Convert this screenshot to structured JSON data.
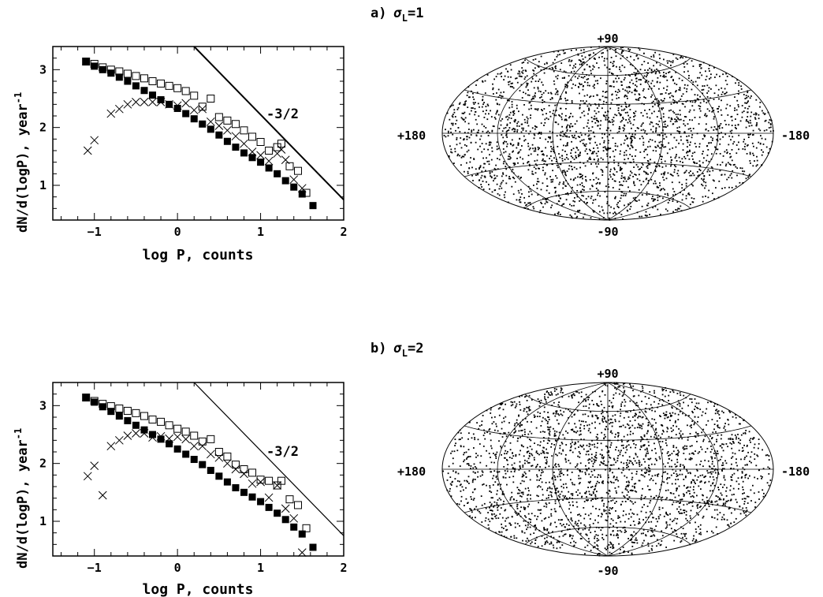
{
  "chart_data": [
    {
      "type": "scatter",
      "panel": "a",
      "xlabel": "log P, counts",
      "ylabel": "dN/d(logP), year",
      "ylabel_sup": "-1",
      "xlim": [
        -1.5,
        2.0
      ],
      "ylim": [
        0.4,
        3.4
      ],
      "xticks": [
        -1,
        0,
        1,
        2
      ],
      "yticks": [
        1,
        2,
        3
      ],
      "annotation": "-3/2",
      "line": {
        "x": [
          0.2,
          2.0
        ],
        "y": [
          3.4,
          0.75
        ]
      },
      "series": [
        {
          "marker": "filled-square",
          "values": [
            [
              -1.1,
              3.14
            ],
            [
              -1.0,
              3.06
            ],
            [
              -0.9,
              3.0
            ],
            [
              -0.8,
              2.94
            ],
            [
              -0.7,
              2.87
            ],
            [
              -0.6,
              2.8
            ],
            [
              -0.5,
              2.72
            ],
            [
              -0.4,
              2.64
            ],
            [
              -0.3,
              2.56
            ],
            [
              -0.2,
              2.48
            ],
            [
              -0.1,
              2.4
            ],
            [
              0.0,
              2.33
            ],
            [
              0.1,
              2.24
            ],
            [
              0.2,
              2.15
            ],
            [
              0.3,
              2.06
            ],
            [
              0.4,
              1.97
            ],
            [
              0.5,
              1.87
            ],
            [
              0.6,
              1.76
            ],
            [
              0.7,
              1.66
            ],
            [
              0.8,
              1.56
            ],
            [
              0.9,
              1.48
            ],
            [
              1.0,
              1.4
            ],
            [
              1.1,
              1.3
            ],
            [
              1.2,
              1.2
            ],
            [
              1.3,
              1.08
            ],
            [
              1.4,
              0.97
            ],
            [
              1.5,
              0.85
            ],
            [
              1.63,
              0.65
            ]
          ]
        },
        {
          "marker": "open-square",
          "values": [
            [
              -1.1,
              3.14
            ],
            [
              -1.0,
              3.1
            ],
            [
              -0.9,
              3.04
            ],
            [
              -0.8,
              3.0
            ],
            [
              -0.7,
              2.97
            ],
            [
              -0.6,
              2.93
            ],
            [
              -0.5,
              2.89
            ],
            [
              -0.4,
              2.85
            ],
            [
              -0.3,
              2.8
            ],
            [
              -0.2,
              2.76
            ],
            [
              -0.1,
              2.72
            ],
            [
              0.0,
              2.68
            ],
            [
              0.1,
              2.63
            ],
            [
              0.2,
              2.55
            ],
            [
              0.3,
              2.36
            ],
            [
              0.4,
              2.5
            ],
            [
              0.5,
              2.18
            ],
            [
              0.6,
              2.12
            ],
            [
              0.7,
              2.06
            ],
            [
              0.8,
              1.95
            ],
            [
              0.9,
              1.84
            ],
            [
              1.0,
              1.75
            ],
            [
              1.1,
              1.6
            ],
            [
              1.2,
              1.66
            ],
            [
              1.25,
              1.72
            ],
            [
              1.35,
              1.33
            ],
            [
              1.45,
              1.25
            ],
            [
              1.55,
              0.87
            ]
          ]
        },
        {
          "marker": "cross",
          "values": [
            [
              -1.08,
              1.6
            ],
            [
              -1.0,
              1.78
            ],
            [
              -0.8,
              2.24
            ],
            [
              -0.7,
              2.32
            ],
            [
              -0.6,
              2.4
            ],
            [
              -0.5,
              2.44
            ],
            [
              -0.4,
              2.44
            ],
            [
              -0.3,
              2.44
            ],
            [
              -0.2,
              2.44
            ],
            [
              -0.1,
              2.4
            ],
            [
              0.0,
              2.38
            ],
            [
              0.1,
              2.42
            ],
            [
              0.2,
              2.3
            ],
            [
              0.3,
              2.32
            ],
            [
              0.4,
              2.1
            ],
            [
              0.5,
              2.03
            ],
            [
              0.6,
              1.95
            ],
            [
              0.7,
              1.85
            ],
            [
              0.8,
              1.72
            ],
            [
              0.9,
              1.58
            ],
            [
              1.0,
              1.52
            ],
            [
              1.1,
              1.42
            ],
            [
              1.2,
              1.55
            ],
            [
              1.25,
              1.62
            ],
            [
              1.3,
              1.44
            ],
            [
              1.4,
              1.1
            ],
            [
              1.5,
              0.95
            ]
          ]
        }
      ]
    },
    {
      "type": "scatter",
      "panel": "b",
      "xlabel": "log P, counts",
      "ylabel": "dN/d(logP), year",
      "ylabel_sup": "-1",
      "xlim": [
        -1.5,
        2.0
      ],
      "ylim": [
        0.4,
        3.4
      ],
      "xticks": [
        -1,
        0,
        1,
        2
      ],
      "yticks": [
        1,
        2,
        3
      ],
      "annotation": "-3/2",
      "line": {
        "x": [
          0.2,
          2.0
        ],
        "y": [
          3.4,
          0.75
        ]
      },
      "series": [
        {
          "marker": "filled-square",
          "values": [
            [
              -1.1,
              3.14
            ],
            [
              -1.0,
              3.06
            ],
            [
              -0.9,
              2.98
            ],
            [
              -0.8,
              2.9
            ],
            [
              -0.7,
              2.82
            ],
            [
              -0.6,
              2.74
            ],
            [
              -0.5,
              2.66
            ],
            [
              -0.4,
              2.58
            ],
            [
              -0.3,
              2.5
            ],
            [
              -0.2,
              2.42
            ],
            [
              -0.1,
              2.34
            ],
            [
              0.0,
              2.25
            ],
            [
              0.1,
              2.16
            ],
            [
              0.2,
              2.07
            ],
            [
              0.3,
              1.98
            ],
            [
              0.4,
              1.88
            ],
            [
              0.5,
              1.78
            ],
            [
              0.6,
              1.68
            ],
            [
              0.7,
              1.58
            ],
            [
              0.8,
              1.5
            ],
            [
              0.9,
              1.42
            ],
            [
              1.0,
              1.34
            ],
            [
              1.1,
              1.24
            ],
            [
              1.2,
              1.14
            ],
            [
              1.3,
              1.03
            ],
            [
              1.4,
              0.9
            ],
            [
              1.5,
              0.78
            ],
            [
              1.63,
              0.55
            ]
          ]
        },
        {
          "marker": "open-square",
          "values": [
            [
              -1.1,
              3.14
            ],
            [
              -1.0,
              3.08
            ],
            [
              -0.9,
              3.03
            ],
            [
              -0.8,
              2.99
            ],
            [
              -0.7,
              2.95
            ],
            [
              -0.6,
              2.91
            ],
            [
              -0.5,
              2.87
            ],
            [
              -0.4,
              2.82
            ],
            [
              -0.3,
              2.76
            ],
            [
              -0.2,
              2.72
            ],
            [
              -0.1,
              2.66
            ],
            [
              0.0,
              2.6
            ],
            [
              0.1,
              2.55
            ],
            [
              0.2,
              2.48
            ],
            [
              0.3,
              2.38
            ],
            [
              0.4,
              2.42
            ],
            [
              0.5,
              2.2
            ],
            [
              0.6,
              2.12
            ],
            [
              0.7,
              1.98
            ],
            [
              0.8,
              1.9
            ],
            [
              0.9,
              1.84
            ],
            [
              1.0,
              1.72
            ],
            [
              1.1,
              1.7
            ],
            [
              1.2,
              1.62
            ],
            [
              1.25,
              1.7
            ],
            [
              1.35,
              1.38
            ],
            [
              1.45,
              1.28
            ],
            [
              1.55,
              0.88
            ]
          ]
        },
        {
          "marker": "cross",
          "values": [
            [
              -1.08,
              1.78
            ],
            [
              -1.0,
              1.96
            ],
            [
              -0.9,
              1.45
            ],
            [
              -0.8,
              2.3
            ],
            [
              -0.7,
              2.4
            ],
            [
              -0.6,
              2.48
            ],
            [
              -0.5,
              2.52
            ],
            [
              -0.4,
              2.52
            ],
            [
              -0.3,
              2.45
            ],
            [
              -0.2,
              2.47
            ],
            [
              -0.1,
              2.43
            ],
            [
              0.0,
              2.46
            ],
            [
              0.1,
              2.42
            ],
            [
              0.2,
              2.3
            ],
            [
              0.3,
              2.3
            ],
            [
              0.4,
              2.16
            ],
            [
              0.5,
              2.1
            ],
            [
              0.6,
              2.0
            ],
            [
              0.7,
              1.9
            ],
            [
              0.8,
              1.82
            ],
            [
              0.9,
              1.65
            ],
            [
              1.0,
              1.68
            ],
            [
              1.1,
              1.41
            ],
            [
              1.2,
              1.62
            ],
            [
              1.3,
              1.22
            ],
            [
              1.4,
              1.05
            ],
            [
              1.5,
              0.46
            ]
          ]
        }
      ]
    }
  ],
  "panels": [
    {
      "title_prefix": "a)",
      "sigma": "σ",
      "sigma_sub": "L",
      "title_suffix": "=1",
      "map": {
        "top": "+90",
        "bottom": "-90",
        "left": "+180",
        "right": "-180",
        "n_points": 2600,
        "seed": 11
      }
    },
    {
      "title_prefix": "b)",
      "sigma": "σ",
      "sigma_sub": "L",
      "title_suffix": "=2",
      "map": {
        "top": "+90",
        "bottom": "-90",
        "left": "+180",
        "right": "-180",
        "n_points": 2600,
        "seed": 27
      }
    }
  ]
}
